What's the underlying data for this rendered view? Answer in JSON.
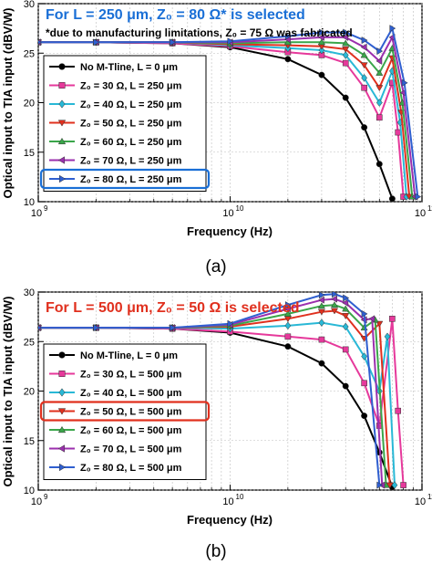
{
  "caption_a": "(a)",
  "caption_b": "(b)",
  "chart_data": [
    {
      "type": "line",
      "title": "",
      "xlabel": "Frequency (Hz)",
      "ylabel": "Optical input to TIA input (dBV/W)",
      "xscale": "log",
      "xlim": [
        1000000000.0,
        100000000000.0
      ],
      "ylim": [
        10,
        30
      ],
      "xticks": [
        "10",
        "10",
        "10"
      ],
      "xtick_exponents": [
        "9",
        "10",
        "11"
      ],
      "yticks": [
        "10",
        "15",
        "20",
        "25",
        "30"
      ],
      "grid": true,
      "legend_position": "lower-left",
      "annotation_main": "For L = 250 μm, Z₀ = 80 Ω* is selected",
      "annotation_sub": "*due to manufacturing limitations, Z₀ = 75 Ω was fabricated",
      "annotation_color": "#1a6fd6",
      "highlight_box_color": "#1a6fd6",
      "highlight_series": 6,
      "series": [
        {
          "name": "No M-Tline, L = 0 μm",
          "color": "#000000",
          "marker": "circle",
          "x": [
            1000000000.0,
            2000000000.0,
            5000000000.0,
            10000000000.0,
            20000000000.0,
            30000000000.0,
            40000000000.0,
            50000000000.0,
            60000000000.0,
            70000000000.0
          ],
          "y": [
            26.1,
            26.1,
            26.0,
            25.6,
            24.4,
            22.8,
            20.5,
            17.5,
            13.8,
            10.3
          ]
        },
        {
          "name": "Z₀ = 30 Ω, L = 250 μm",
          "color": "#e6399b",
          "marker": "square",
          "x": [
            1000000000.0,
            2000000000.0,
            5000000000.0,
            10000000000.0,
            20000000000.0,
            30000000000.0,
            40000000000.0,
            50000000000.0,
            60000000000.0,
            70000000000.0,
            75000000000.0,
            80000000000.0
          ],
          "y": [
            26.1,
            26.1,
            26.0,
            25.7,
            25.1,
            24.8,
            24.0,
            21.5,
            18.5,
            22.0,
            17.0,
            10.5
          ]
        },
        {
          "name": "Z₀ = 40 Ω, L = 250 μm",
          "color": "#29b8d6",
          "marker": "diamond",
          "x": [
            1000000000.0,
            2000000000.0,
            5000000000.0,
            10000000000.0,
            20000000000.0,
            30000000000.0,
            40000000000.0,
            50000000000.0,
            60000000000.0,
            70000000000.0,
            77000000000.0,
            83000000000.0
          ],
          "y": [
            26.1,
            26.1,
            26.1,
            25.8,
            25.5,
            25.3,
            24.8,
            22.5,
            20.0,
            23.2,
            18.0,
            10.5
          ]
        },
        {
          "name": "Z₀ = 50 Ω, L = 250 μm",
          "color": "#e0301e",
          "marker": "triangle-down",
          "x": [
            1000000000.0,
            2000000000.0,
            5000000000.0,
            10000000000.0,
            20000000000.0,
            30000000000.0,
            40000000000.0,
            50000000000.0,
            60000000000.0,
            70000000000.0,
            78000000000.0,
            86000000000.0
          ],
          "y": [
            26.1,
            26.1,
            26.1,
            25.9,
            25.8,
            25.7,
            25.4,
            23.8,
            21.5,
            24.5,
            19.0,
            10.5
          ]
        },
        {
          "name": "Z₀ = 60 Ω, L = 250 μm",
          "color": "#3aa64a",
          "marker": "triangle-up",
          "x": [
            1000000000.0,
            2000000000.0,
            5000000000.0,
            10000000000.0,
            20000000000.0,
            30000000000.0,
            40000000000.0,
            50000000000.0,
            60000000000.0,
            70000000000.0,
            79000000000.0,
            89000000000.0
          ],
          "y": [
            26.1,
            26.1,
            26.1,
            26.0,
            26.1,
            26.1,
            26.0,
            24.8,
            23.0,
            25.5,
            20.0,
            10.5
          ]
        },
        {
          "name": "Z₀ = 70 Ω, L = 250 μm",
          "color": "#9b2fae",
          "marker": "triangle-left",
          "x": [
            1000000000.0,
            2000000000.0,
            5000000000.0,
            10000000000.0,
            20000000000.0,
            30000000000.0,
            40000000000.0,
            50000000000.0,
            60000000000.0,
            70000000000.0,
            80000000000.0,
            92000000000.0
          ],
          "y": [
            26.1,
            26.1,
            26.1,
            26.1,
            26.4,
            26.6,
            26.6,
            25.6,
            24.2,
            26.6,
            21.0,
            10.5
          ]
        },
        {
          "name": "Z₀ = 80 Ω, L = 250 μm",
          "color": "#2f5fd0",
          "marker": "triangle-right",
          "x": [
            1000000000.0,
            2000000000.0,
            5000000000.0,
            10000000000.0,
            20000000000.0,
            30000000000.0,
            40000000000.0,
            50000000000.0,
            60000000000.0,
            70000000000.0,
            81000000000.0,
            95000000000.0
          ],
          "y": [
            26.1,
            26.1,
            26.1,
            26.2,
            26.7,
            27.1,
            27.1,
            26.3,
            25.2,
            27.5,
            22.0,
            10.5
          ]
        }
      ]
    },
    {
      "type": "line",
      "title": "",
      "xlabel": "Frequency (Hz)",
      "ylabel": "Optical input to TIA input (dBV/W)",
      "xscale": "log",
      "xlim": [
        1000000000.0,
        100000000000.0
      ],
      "ylim": [
        10,
        30
      ],
      "xticks": [
        "10",
        "10",
        "10"
      ],
      "xtick_exponents": [
        "9",
        "10",
        "11"
      ],
      "yticks": [
        "10",
        "15",
        "20",
        "25",
        "30"
      ],
      "grid": true,
      "legend_position": "lower-left",
      "annotation_main": "For L = 500 μm, Z₀ = 50 Ω is selected",
      "annotation_color": "#e0301e",
      "highlight_box_color": "#e0301e",
      "highlight_series": 3,
      "series": [
        {
          "name": "No M-Tline, L = 0 μm",
          "color": "#000000",
          "marker": "circle",
          "x": [
            1000000000.0,
            2000000000.0,
            5000000000.0,
            10000000000.0,
            20000000000.0,
            30000000000.0,
            40000000000.0,
            50000000000.0,
            60000000000.0,
            70000000000.0
          ],
          "y": [
            26.4,
            26.4,
            26.3,
            25.9,
            24.5,
            22.8,
            20.5,
            17.5,
            13.8,
            10.3
          ]
        },
        {
          "name": "Z₀ = 30 Ω, L = 500 μm",
          "color": "#e6399b",
          "marker": "square",
          "x": [
            1000000000.0,
            2000000000.0,
            5000000000.0,
            10000000000.0,
            20000000000.0,
            30000000000.0,
            40000000000.0,
            50000000000.0,
            60000000000.0,
            70000000000.0,
            75000000000.0,
            80000000000.0
          ],
          "y": [
            26.4,
            26.4,
            26.3,
            26.0,
            25.5,
            25.2,
            24.2,
            20.8,
            16.5,
            27.3,
            18.0,
            10.5
          ]
        },
        {
          "name": "Z₀ = 40 Ω, L = 500 μm",
          "color": "#29b8d6",
          "marker": "diamond",
          "x": [
            1000000000.0,
            2000000000.0,
            5000000000.0,
            10000000000.0,
            20000000000.0,
            30000000000.0,
            40000000000.0,
            50000000000.0,
            60000000000.0,
            66000000000.0,
            72000000000.0
          ],
          "y": [
            26.4,
            26.4,
            26.4,
            26.3,
            26.6,
            26.9,
            26.5,
            23.5,
            20.0,
            25.5,
            10.5
          ]
        },
        {
          "name": "Z₀ = 50 Ω, L = 500 μm",
          "color": "#e0301e",
          "marker": "triangle-down",
          "x": [
            1000000000.0,
            2000000000.0,
            5000000000.0,
            10000000000.0,
            20000000000.0,
            30000000000.0,
            35000000000.0,
            40000000000.0,
            50000000000.0,
            60000000000.0,
            68000000000.0
          ],
          "y": [
            26.4,
            26.4,
            26.4,
            26.5,
            27.3,
            28.0,
            28.1,
            27.6,
            25.3,
            26.8,
            10.5
          ]
        },
        {
          "name": "Z₀ = 60 Ω, L = 500 μm",
          "color": "#3aa64a",
          "marker": "triangle-up",
          "x": [
            1000000000.0,
            2000000000.0,
            5000000000.0,
            10000000000.0,
            20000000000.0,
            30000000000.0,
            35000000000.0,
            40000000000.0,
            50000000000.0,
            57000000000.0,
            65000000000.0
          ],
          "y": [
            26.4,
            26.4,
            26.4,
            26.6,
            27.8,
            28.6,
            28.7,
            28.3,
            26.4,
            27.2,
            10.5
          ]
        },
        {
          "name": "Z₀ = 70 Ω, L = 500 μm",
          "color": "#9b2fae",
          "marker": "triangle-left",
          "x": [
            1000000000.0,
            2000000000.0,
            5000000000.0,
            10000000000.0,
            20000000000.0,
            30000000000.0,
            35000000000.0,
            40000000000.0,
            50000000000.0,
            55000000000.0,
            62000000000.0
          ],
          "y": [
            26.4,
            26.4,
            26.4,
            26.7,
            28.3,
            29.2,
            29.3,
            28.9,
            27.2,
            27.3,
            10.5
          ]
        },
        {
          "name": "Z₀ = 80 Ω, L = 500 μm",
          "color": "#2f5fd0",
          "marker": "triangle-right",
          "x": [
            1000000000.0,
            2000000000.0,
            5000000000.0,
            10000000000.0,
            20000000000.0,
            30000000000.0,
            35000000000.0,
            40000000000.0,
            50000000000.0,
            60000000000.0
          ],
          "y": [
            26.4,
            26.4,
            26.4,
            26.8,
            28.7,
            29.7,
            29.8,
            29.4,
            27.8,
            10.5
          ]
        }
      ]
    }
  ]
}
